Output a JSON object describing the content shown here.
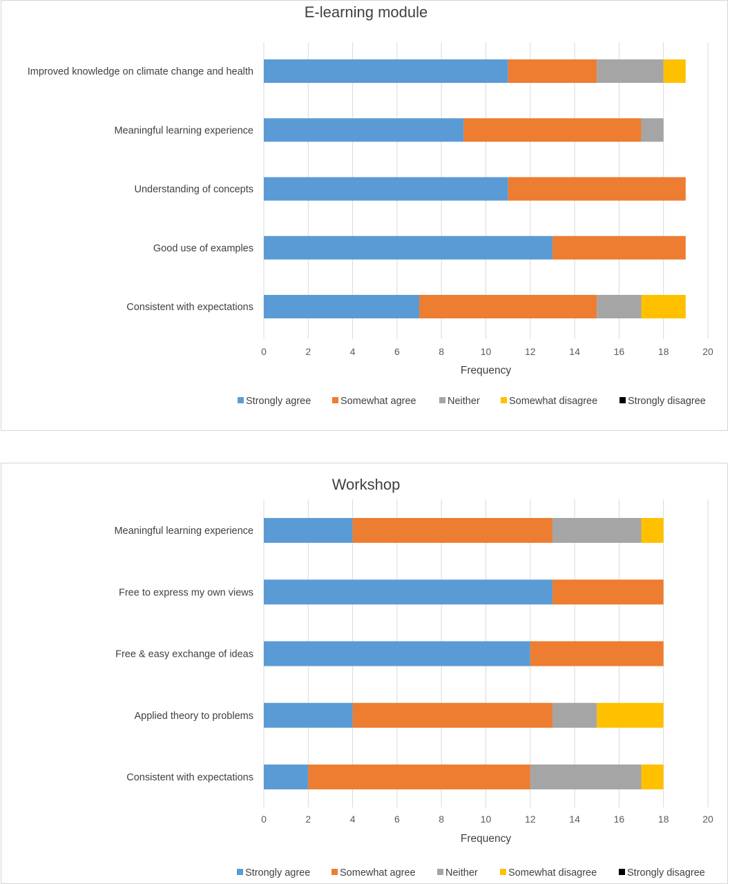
{
  "chart_data": [
    {
      "type": "bar",
      "orientation": "horizontal",
      "stacked": true,
      "title": "E-learning module",
      "xlabel": "Frequency",
      "ylabel": "",
      "xlim": [
        0,
        20
      ],
      "xticks": [
        "0",
        "2",
        "4",
        "6",
        "8",
        "10",
        "12",
        "14",
        "16",
        "18",
        "20"
      ],
      "grid": true,
      "legend_position": "bottom",
      "categories": [
        "Improved knowledge on climate change and health",
        "Meaningful learning experience",
        "Understanding of concepts",
        "Good use of examples",
        "Consistent with expectations"
      ],
      "series": [
        {
          "name": "Strongly agree",
          "color": "#5b9bd5",
          "values": [
            11,
            9,
            11,
            13,
            7
          ]
        },
        {
          "name": "Somewhat agree",
          "color": "#ed7d31",
          "values": [
            4,
            8,
            8,
            6,
            8
          ]
        },
        {
          "name": "Neither",
          "color": "#a5a5a5",
          "values": [
            3,
            1,
            0,
            0,
            2
          ]
        },
        {
          "name": "Somewhat disagree",
          "color": "#ffc000",
          "values": [
            1,
            0,
            0,
            0,
            2
          ]
        },
        {
          "name": "Strongly disagree",
          "color": "#000000",
          "values": [
            0,
            0,
            0,
            0,
            0
          ]
        }
      ]
    },
    {
      "type": "bar",
      "orientation": "horizontal",
      "stacked": true,
      "title": "Workshop",
      "xlabel": "Frequency",
      "ylabel": "",
      "xlim": [
        0,
        20
      ],
      "xticks": [
        "0",
        "2",
        "4",
        "6",
        "8",
        "10",
        "12",
        "14",
        "16",
        "18",
        "20"
      ],
      "grid": true,
      "legend_position": "bottom",
      "categories": [
        "Meaningful learning experience",
        "Free to express my own views",
        "Free & easy exchange of ideas",
        "Applied theory to problems",
        "Consistent with expectations"
      ],
      "series": [
        {
          "name": "Strongly agree",
          "color": "#5b9bd5",
          "values": [
            4,
            13,
            12,
            4,
            2
          ]
        },
        {
          "name": "Somewhat agree",
          "color": "#ed7d31",
          "values": [
            9,
            5,
            6,
            9,
            10
          ]
        },
        {
          "name": "Neither",
          "color": "#a5a5a5",
          "values": [
            4,
            0,
            0,
            2,
            5
          ]
        },
        {
          "name": "Somewhat disagree",
          "color": "#ffc000",
          "values": [
            1,
            0,
            0,
            3,
            1
          ]
        },
        {
          "name": "Strongly disagree",
          "color": "#000000",
          "values": [
            0,
            0,
            0,
            0,
            0
          ]
        }
      ]
    }
  ]
}
